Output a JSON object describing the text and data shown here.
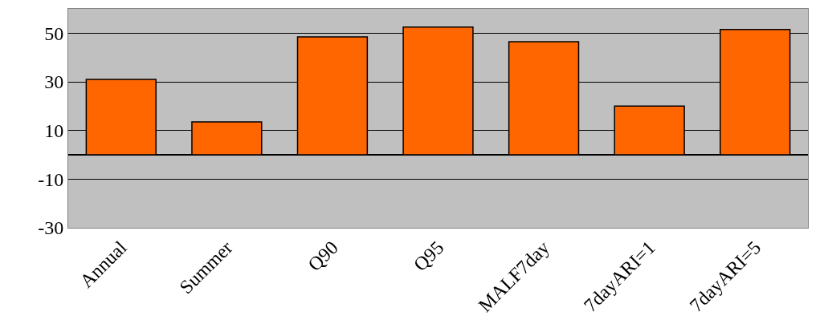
{
  "chart_data": {
    "type": "bar",
    "categories": [
      "Annual",
      "Summer",
      "Q90",
      "Q95",
      "MALF7day",
      "7dayARI=1",
      "7dayARI=5"
    ],
    "values": [
      31,
      13.5,
      48.5,
      52.5,
      46.5,
      20,
      51.5
    ],
    "color": "#ff6600",
    "ylim": [
      -30,
      60
    ],
    "yticks": [
      -30,
      -10,
      10,
      30,
      50
    ],
    "grid": "y"
  }
}
